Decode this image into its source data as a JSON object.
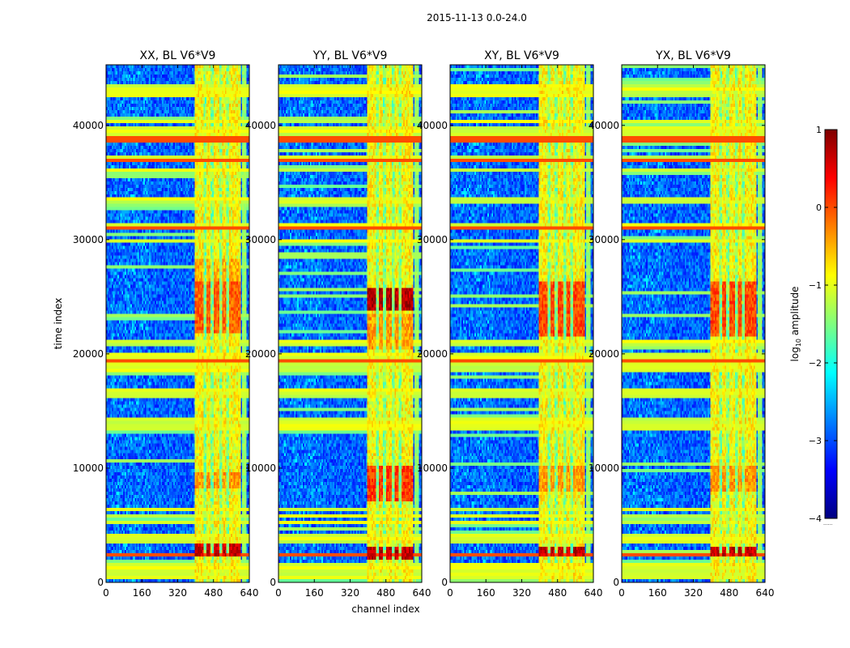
{
  "suptitle": "2015-11-13 0.0-24.0",
  "chart_data": [
    {
      "type": "heatmap",
      "title": "XX, BL V6*V9",
      "xlabel": "",
      "ylabel": "time index",
      "xlim": [
        0,
        640
      ],
      "ylim": [
        0,
        45300
      ],
      "xticks": [
        0,
        160,
        320,
        480,
        640
      ],
      "yticks": [
        0,
        10000,
        20000,
        30000,
        40000
      ],
      "xtick_labels": [
        "0",
        "160",
        "320",
        "480",
        "640"
      ],
      "ytick_labels": [
        "0",
        "10000",
        "20000",
        "30000",
        "40000"
      ],
      "hot_blocks": [
        {
          "y": [
            2300,
            3300
          ],
          "level": 0.93
        },
        {
          "y": [
            8200,
            9600
          ],
          "level": 0.72
        },
        {
          "y": [
            21800,
            26200
          ],
          "level": 0.78
        },
        {
          "y": [
            26400,
            28200
          ],
          "level": 0.7
        }
      ]
    },
    {
      "type": "heatmap",
      "title": "YY, BL V6*V9",
      "xlabel": "channel index",
      "ylabel": "",
      "xlim": [
        0,
        640
      ],
      "ylim": [
        0,
        45300
      ],
      "xticks": [
        0,
        160,
        320,
        480,
        640
      ],
      "yticks": [
        0,
        10000,
        20000,
        30000,
        40000
      ],
      "xtick_labels": [
        "0",
        "160",
        "320",
        "480",
        "640"
      ],
      "ytick_labels": [
        "0",
        "10000",
        "20000",
        "30000",
        "40000"
      ],
      "hot_blocks": [
        {
          "y": [
            2000,
            3200
          ],
          "level": 0.93
        },
        {
          "y": [
            7000,
            10200
          ],
          "level": 0.82
        },
        {
          "y": [
            23800,
            25800
          ],
          "level": 0.95
        },
        {
          "y": [
            20500,
            23500
          ],
          "level": 0.72
        }
      ]
    },
    {
      "type": "heatmap",
      "title": "XY, BL V6*V9",
      "xlabel": "",
      "ylabel": "",
      "xlim": [
        0,
        640
      ],
      "ylim": [
        0,
        45300
      ],
      "xticks": [
        0,
        160,
        320,
        480,
        640
      ],
      "yticks": [
        0,
        10000,
        20000,
        30000,
        40000
      ],
      "xtick_labels": [
        "0",
        "160",
        "320",
        "480",
        "640"
      ],
      "ytick_labels": [
        "0",
        "10000",
        "20000",
        "30000",
        "40000"
      ],
      "hot_blocks": [
        {
          "y": [
            2200,
            3200
          ],
          "level": 0.93
        },
        {
          "y": [
            7800,
            10200
          ],
          "level": 0.72
        },
        {
          "y": [
            21500,
            26200
          ],
          "level": 0.8
        }
      ]
    },
    {
      "type": "heatmap",
      "title": "YX, BL V6*V9",
      "xlabel": "",
      "ylabel": "",
      "xlim": [
        0,
        640
      ],
      "ylim": [
        0,
        45300
      ],
      "xticks": [
        0,
        160,
        320,
        480,
        640
      ],
      "yticks": [
        0,
        10000,
        20000,
        30000,
        40000
      ],
      "xtick_labels": [
        "0",
        "160",
        "320",
        "480",
        "640"
      ],
      "ytick_labels": [
        "0",
        "10000",
        "20000",
        "30000",
        "40000"
      ],
      "hot_blocks": [
        {
          "y": [
            2200,
            3200
          ],
          "level": 0.93
        },
        {
          "y": [
            7800,
            10200
          ],
          "level": 0.72
        },
        {
          "y": [
            21500,
            26200
          ],
          "level": 0.8
        }
      ]
    }
  ],
  "shared": {
    "bright_band_channels": [
      400,
      600
    ],
    "bright_level": 0.62,
    "background_level": 0.22,
    "rfi_time_rows": [
      600,
      1100,
      1600,
      3700,
      4000,
      5300,
      5800,
      6300,
      13500,
      13800,
      14200,
      16300,
      16700,
      18700,
      19000,
      19300,
      19800,
      21000,
      29800,
      31100,
      33400,
      36100,
      37300,
      38800,
      39300,
      39700,
      40300,
      42800,
      43300
    ],
    "hot_rows": [
      2300,
      19500,
      31000,
      37000,
      38800
    ]
  },
  "colorbar": {
    "label": "log10 amplitude",
    "label_base": "log",
    "label_sub": "10",
    "label_rest": " amplitude",
    "range": [
      -4,
      1
    ],
    "ticks": [
      1,
      0,
      -1,
      -2,
      -3,
      -4
    ],
    "tick_labels": [
      "1",
      "0",
      "−1",
      "−2",
      "−3",
      "−4"
    ],
    "footnote": "......"
  },
  "colors": {
    "axis": "#000000",
    "jet": [
      "#00007f",
      "#0000ff",
      "#007fff",
      "#00ffff",
      "#7fff7f",
      "#ffff00",
      "#ff7f00",
      "#ff0000",
      "#7f0000"
    ]
  }
}
